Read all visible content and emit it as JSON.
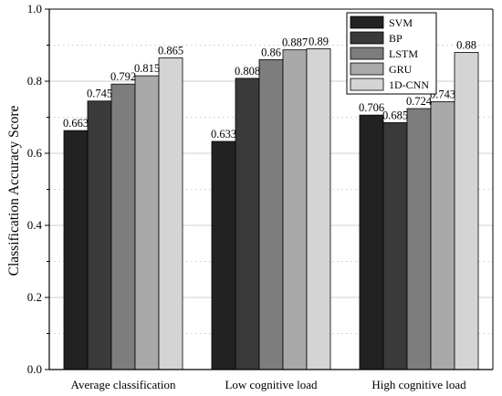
{
  "chart_data": {
    "type": "bar",
    "title": "",
    "xlabel": "",
    "ylabel": "Classification Accuracy Score",
    "ylim": [
      0,
      1.0
    ],
    "yticks": [
      "0.0",
      "0.2",
      "0.4",
      "0.6",
      "0.8",
      "1.0"
    ],
    "categories": [
      "Average classification",
      "Low cognitive load",
      "High cognitive load"
    ],
    "series": [
      {
        "name": "SVM",
        "values": [
          0.663,
          0.633,
          0.706
        ],
        "labels": [
          "0.663",
          "0.633",
          "0.706"
        ],
        "color": "#222222"
      },
      {
        "name": "BP",
        "values": [
          0.745,
          0.808,
          0.685
        ],
        "labels": [
          "0.745",
          "0.808",
          "0.685"
        ],
        "color": "#3a3a3a"
      },
      {
        "name": "LSTM",
        "values": [
          0.792,
          0.86,
          0.724
        ],
        "labels": [
          "0.792",
          "0.86",
          "0.724"
        ],
        "color": "#7d7d7d"
      },
      {
        "name": "GRU",
        "values": [
          0.815,
          0.887,
          0.743
        ],
        "labels": [
          "0.815",
          "0.887",
          "0.743"
        ],
        "color": "#a9a9a9"
      },
      {
        "name": "1D-CNN",
        "values": [
          0.865,
          0.89,
          0.88
        ],
        "labels": [
          "0.865",
          "0.89",
          "0.88"
        ],
        "color": "#d4d4d4"
      }
    ],
    "grid": "dashed horizontal at 0.5 steps",
    "legend": "top-right"
  }
}
